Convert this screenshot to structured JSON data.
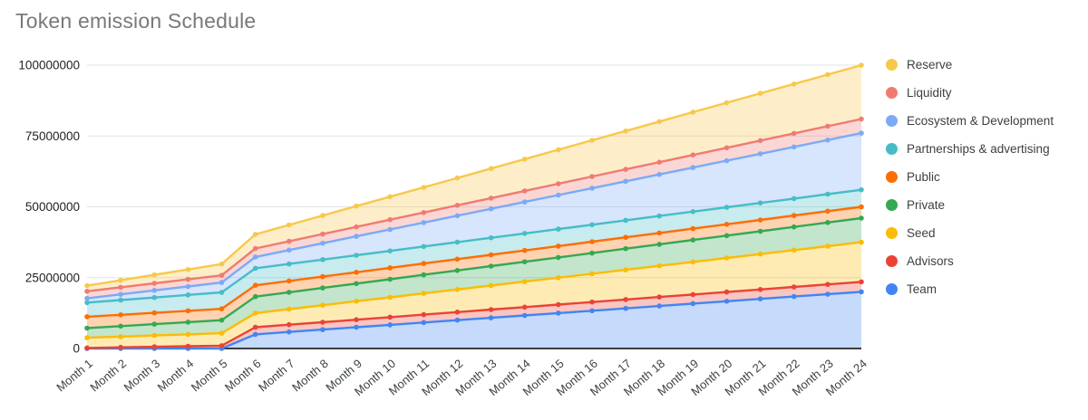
{
  "chart_data": {
    "type": "area",
    "stacked": true,
    "title": "Token emission Schedule",
    "xlabel": "",
    "ylabel": "",
    "ylim": [
      0,
      100000000
    ],
    "y_ticks": [
      0,
      25000000,
      50000000,
      75000000,
      100000000
    ],
    "grid": true,
    "legend_position": "right",
    "categories": [
      "Month 1",
      "Month 2",
      "Month 3",
      "Month 4",
      "Month 5",
      "Month 6",
      "Month 7",
      "Month 8",
      "Month 9",
      "Month 10",
      "Month 11",
      "Month 12",
      "Month 13",
      "Month 14",
      "Month 15",
      "Month 16",
      "Month 17",
      "Month 18",
      "Month 19",
      "Month 20",
      "Month 21",
      "Month 22",
      "Month 23",
      "Month 24"
    ],
    "series": [
      {
        "name": "Team",
        "color": "#4285F4",
        "values": [
          0,
          0,
          0,
          0,
          0,
          5000000,
          5833333,
          6666667,
          7500000,
          8333333,
          9166667,
          10000000,
          10833333,
          11666667,
          12500000,
          13333333,
          14166667,
          15000000,
          15833333,
          16666667,
          17500000,
          18333333,
          19166667,
          20000000
        ]
      },
      {
        "name": "Advisors",
        "color": "#EA4335",
        "values": [
          200000,
          400000,
          600000,
          800000,
          1000000,
          2500000,
          2555556,
          2611111,
          2666667,
          2722222,
          2777778,
          2833333,
          2888889,
          2944444,
          3000000,
          3055556,
          3111111,
          3166667,
          3222222,
          3277778,
          3333333,
          3388889,
          3444444,
          3500000
        ]
      },
      {
        "name": "Seed",
        "color": "#FBBC04",
        "values": [
          3600000,
          3800000,
          4000000,
          4200000,
          4400000,
          5000000,
          5500000,
          6000000,
          6500000,
          7000000,
          7500000,
          8000000,
          8500000,
          9000000,
          9500000,
          10000000,
          10500000,
          11000000,
          11500000,
          12000000,
          12500000,
          13000000,
          13500000,
          14000000
        ]
      },
      {
        "name": "Private",
        "color": "#34A853",
        "values": [
          3400000,
          3700000,
          4000000,
          4300000,
          4600000,
          5800000,
          5950000,
          6100000,
          6250000,
          6400000,
          6550000,
          6700000,
          6850000,
          7000000,
          7150000,
          7300000,
          7450000,
          7600000,
          7750000,
          7900000,
          8050000,
          8200000,
          8350000,
          8500000
        ]
      },
      {
        "name": "Public",
        "color": "#FF6D01",
        "values": [
          4000000,
          4000000,
          4000000,
          4000000,
          4000000,
          4000000,
          4000000,
          4000000,
          4000000,
          4000000,
          4000000,
          4000000,
          4000000,
          4000000,
          4000000,
          4000000,
          4000000,
          4000000,
          4000000,
          4000000,
          4000000,
          4000000,
          4000000,
          4000000
        ]
      },
      {
        "name": "Partnerships & advertising",
        "color": "#46BDC6",
        "values": [
          5000000,
          5200000,
          5400000,
          5600000,
          5800000,
          6000000,
          6000000,
          6000000,
          6000000,
          6000000,
          6000000,
          6000000,
          6000000,
          6000000,
          6000000,
          6000000,
          6000000,
          6000000,
          6000000,
          6000000,
          6000000,
          6000000,
          6000000,
          6000000
        ]
      },
      {
        "name": "Ecosystem & Development",
        "color": "#7BAAF7",
        "values": [
          1500000,
          2000000,
          2500000,
          3000000,
          3500000,
          4000000,
          4888889,
          5777778,
          6666667,
          7555556,
          8444444,
          9333333,
          10222222,
          11111111,
          12000000,
          12888889,
          13777778,
          14666667,
          15555556,
          16444444,
          17333333,
          18222222,
          19111111,
          20000000
        ]
      },
      {
        "name": "Liquidity",
        "color": "#F07B72",
        "values": [
          2500000,
          2500000,
          2500000,
          2500000,
          2500000,
          3000000,
          3111111,
          3222222,
          3333333,
          3444444,
          3555556,
          3666667,
          3777778,
          3888889,
          4000000,
          4111111,
          4222222,
          4333333,
          4444444,
          4555556,
          4666667,
          4777778,
          4888889,
          5000000
        ]
      },
      {
        "name": "Reserve",
        "color": "#F8C84B",
        "values": [
          2000000,
          2500000,
          3000000,
          3500000,
          4000000,
          5000000,
          5777778,
          6555556,
          7333333,
          8111111,
          8888889,
          9666667,
          10444444,
          11222222,
          12000000,
          12777778,
          13555556,
          14333333,
          15111111,
          15888889,
          16666667,
          17444444,
          18222222,
          19000000
        ]
      }
    ],
    "legend_top_to_bottom": [
      "Reserve",
      "Liquidity",
      "Ecosystem & Development",
      "Partnerships & advertising",
      "Public",
      "Private",
      "Seed",
      "Advisors",
      "Team"
    ]
  },
  "style": {
    "grid_color": "#e3e3e3",
    "axis_color": "#3c3c3c",
    "tick_label_color": "#1f1f1f",
    "x_label_color": "#3c4043",
    "fill_opacity": 0.3
  }
}
